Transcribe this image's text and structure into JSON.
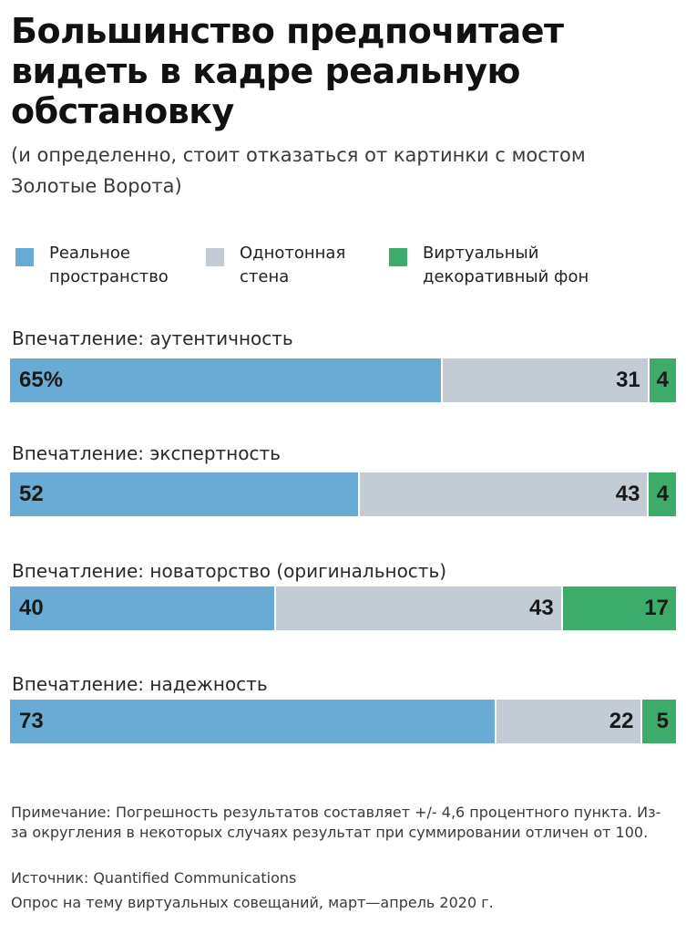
{
  "title": "Большинство предпочитает видеть в кадре реальную обстановку",
  "subtitle": "(и определенно, стоит отказаться от картинки с мостом Золотые Ворота)",
  "colors": {
    "real": "#6aabd6",
    "plain": "#c3ccd5",
    "virtual": "#3dab6a"
  },
  "legend": [
    {
      "label": "Реальное пространство",
      "color": "#6aabd6"
    },
    {
      "label": "Однотонная стена",
      "color": "#c3ccd5"
    },
    {
      "label": "Виртуальный декоративный фон",
      "color": "#3dab6a"
    }
  ],
  "chart_data": {
    "type": "bar",
    "orientation": "horizontal",
    "stacked": true,
    "title": "Большинство предпочитает видеть в кадре реальную обстановку",
    "subtitle": "(и определенно, стоит отказаться от картинки с мостом Золотые Ворота)",
    "categories": [
      "Впечатление: аутентичность",
      "Впечатление: экспертность",
      "Впечатление: новаторство (оригинальность)",
      "Впечатление: надежность"
    ],
    "series": [
      {
        "name": "Реальное пространство",
        "values": [
          65,
          52,
          40,
          73
        ],
        "labels": [
          "65%",
          "52",
          "40",
          "73"
        ]
      },
      {
        "name": "Однотонная стена",
        "values": [
          31,
          43,
          43,
          22
        ],
        "labels": [
          "31",
          "43",
          "43",
          "22"
        ]
      },
      {
        "name": "Виртуальный декоративный фон",
        "values": [
          4,
          4,
          17,
          5
        ],
        "labels": [
          "4",
          "4",
          "17",
          "5"
        ]
      }
    ],
    "xlim": [
      0,
      100
    ],
    "unit": "%",
    "grid": false,
    "legend_position": "top"
  },
  "notes": {
    "note": "Примечание: Погрешность результатов составляет +/- 4,6 процентного пункта. Из-за округления в некоторых случаях результат при суммировании отличен от 100.",
    "source": "Источник: Quantified Communications",
    "survey": "Опрос на тему виртуальных совещаний, март—апрель 2020 г."
  }
}
